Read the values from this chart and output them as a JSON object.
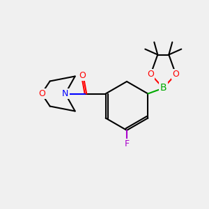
{
  "bg_color": "#f0f0f0",
  "bond_color": "#000000",
  "bond_width": 1.5,
  "atom_colors": {
    "O": "#ff0000",
    "N": "#0000ff",
    "B": "#00aa00",
    "F": "#aa00cc",
    "C": "#000000"
  },
  "font_size": 9,
  "font_size_small": 7
}
